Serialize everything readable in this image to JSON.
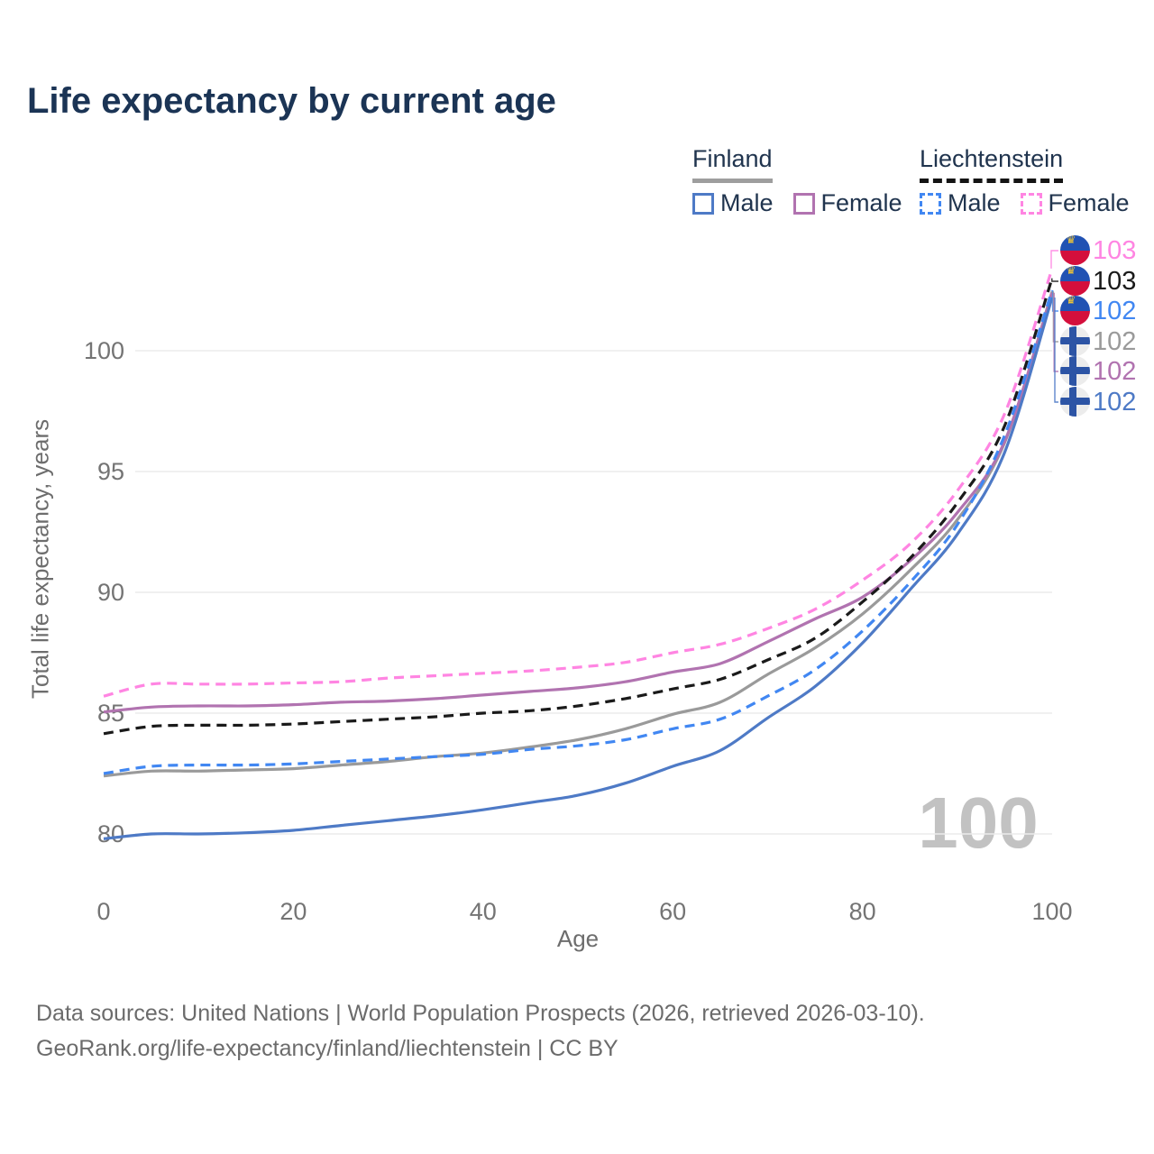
{
  "title": "Life expectancy by current age",
  "legend": {
    "groups": [
      {
        "name": "Finland",
        "line_style": "solid",
        "underline_color": "#9e9e9e",
        "items": [
          {
            "label": "Male",
            "color": "#4e7ac6",
            "dashed": false
          },
          {
            "label": "Female",
            "color": "#b173b0",
            "dashed": false
          }
        ]
      },
      {
        "name": "Liechtenstein",
        "line_style": "dashed",
        "underline_color": "#141414",
        "items": [
          {
            "label": "Male",
            "color": "#4187f2",
            "dashed": true
          },
          {
            "label": "Female",
            "color": "#ff85e2",
            "dashed": true
          }
        ]
      }
    ]
  },
  "chart_data": {
    "type": "line",
    "title": "Life expectancy by current age",
    "xlabel": "Age",
    "ylabel": "Total life expectancy, years",
    "x_ticks": [
      0,
      20,
      40,
      60,
      80,
      100
    ],
    "y_ticks": [
      80,
      85,
      90,
      95,
      100
    ],
    "xlim": [
      0,
      100
    ],
    "ylim": [
      78.5,
      104.5
    ],
    "grid": "horizontal-only",
    "legend_position": "top-right",
    "watermark": "100",
    "ages": [
      0,
      5,
      10,
      15,
      20,
      25,
      30,
      35,
      40,
      45,
      50,
      55,
      60,
      65,
      70,
      75,
      80,
      85,
      90,
      95,
      100
    ],
    "series": [
      {
        "name": "Liechtenstein Female",
        "country": "Liechtenstein",
        "sex": "Female",
        "color": "#ff85e2",
        "dashed": true,
        "end_label": "103",
        "flag": "liechtenstein",
        "values": [
          85.7,
          86.2,
          86.2,
          86.2,
          86.25,
          86.3,
          86.45,
          86.55,
          86.65,
          86.75,
          86.9,
          87.1,
          87.5,
          87.85,
          88.5,
          89.3,
          90.5,
          92.0,
          94.2,
          97.4,
          103.4
        ]
      },
      {
        "name": "Liechtenstein Both sexes",
        "country": "Liechtenstein",
        "sex": "Both sexes",
        "color": "#1a1a1a",
        "dashed": true,
        "end_label": "103",
        "flag": "liechtenstein",
        "values": [
          84.15,
          84.45,
          84.5,
          84.5,
          84.55,
          84.65,
          84.75,
          84.85,
          85.0,
          85.1,
          85.3,
          85.6,
          86.0,
          86.4,
          87.2,
          88.1,
          89.6,
          91.4,
          93.7,
          96.9,
          103.0
        ]
      },
      {
        "name": "Liechtenstein Male",
        "country": "Liechtenstein",
        "sex": "Male",
        "color": "#4187f2",
        "dashed": true,
        "end_label": "102",
        "flag": "liechtenstein",
        "values": [
          82.5,
          82.8,
          82.85,
          82.85,
          82.9,
          83.0,
          83.1,
          83.2,
          83.3,
          83.5,
          83.65,
          83.9,
          84.35,
          84.75,
          85.7,
          86.8,
          88.4,
          90.4,
          92.8,
          96.5,
          102.5
        ]
      },
      {
        "name": "Finland Both sexes",
        "country": "Finland",
        "sex": "Both sexes",
        "color": "#9a9a9a",
        "dashed": false,
        "end_label": "102",
        "flag": "finland",
        "values": [
          82.4,
          82.6,
          82.6,
          82.65,
          82.7,
          82.85,
          83.0,
          83.2,
          83.35,
          83.6,
          83.9,
          84.35,
          84.95,
          85.45,
          86.6,
          87.7,
          89.1,
          90.9,
          93.0,
          96.2,
          102.45
        ]
      },
      {
        "name": "Finland Female",
        "country": "Finland",
        "sex": "Female",
        "color": "#b173b0",
        "dashed": false,
        "end_label": "102",
        "flag": "finland",
        "values": [
          85.05,
          85.25,
          85.3,
          85.3,
          85.35,
          85.45,
          85.5,
          85.6,
          85.75,
          85.9,
          86.05,
          86.3,
          86.7,
          87.05,
          87.95,
          88.9,
          89.8,
          91.3,
          93.3,
          96.25,
          102.4
        ]
      },
      {
        "name": "Finland Male",
        "country": "Finland",
        "sex": "Male",
        "color": "#4e7ac6",
        "dashed": false,
        "end_label": "102",
        "flag": "finland",
        "values": [
          79.8,
          80.0,
          80.0,
          80.05,
          80.15,
          80.35,
          80.55,
          80.75,
          81.0,
          81.3,
          81.6,
          82.1,
          82.8,
          83.45,
          84.8,
          86.1,
          87.9,
          90.1,
          92.4,
          95.8,
          102.2
        ]
      }
    ]
  },
  "footer": {
    "line1": "Data sources: United Nations | World Population Prospects (2026, retrieved 2026-03-10).",
    "line2": "GeoRank.org/life-expectancy/finland/liechtenstein | CC BY"
  }
}
